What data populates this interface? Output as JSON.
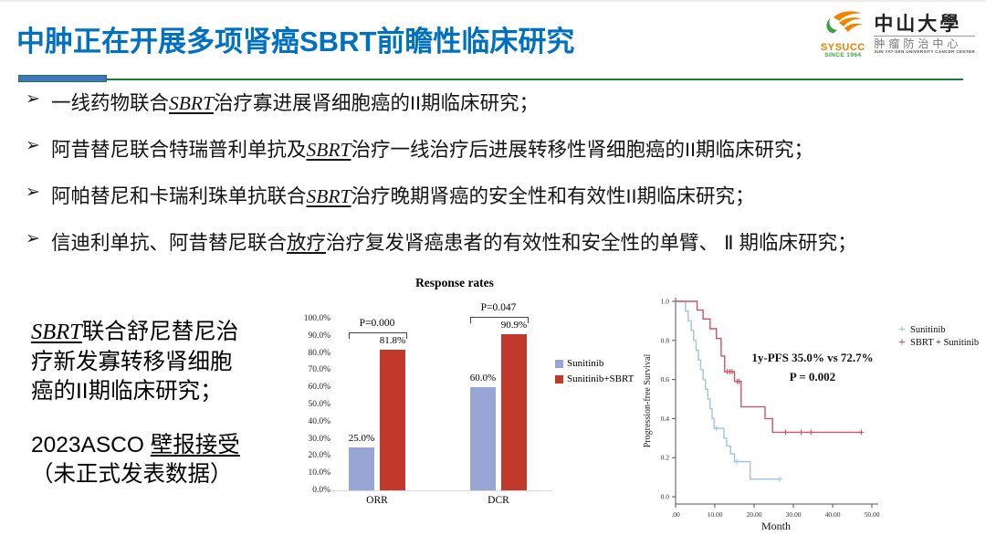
{
  "slide": {
    "title": "中肿正在开展多项肾癌SBRT前瞻性临床研究",
    "logo": {
      "abbr": "SYSUCC",
      "since": "SINCE 1964",
      "org_cn": "中山大學",
      "org_sub_cn": "肿瘤防治中心",
      "org_en": "SUN YAT-SEN UNIVERSITY CANCER CENTER"
    },
    "bullets": [
      {
        "prefix": "一线药物联合",
        "term": "SBRT",
        "suffix": "治疗寡进展肾细胞癌的II期临床研究；"
      },
      {
        "prefix": "阿昔替尼联合特瑞普利单抗及",
        "term": "SBRT",
        "suffix": "治疗一线治疗后进展转移性肾细胞癌的II期临床研究；"
      },
      {
        "prefix": "阿帕替尼和卡瑞利珠单抗联合",
        "term": "SBRT",
        "suffix": "治疗晚期肾癌的安全性和有效性II期临床研究；"
      },
      {
        "prefix": "信迪利单抗、阿昔替尼联合",
        "term": "放疗",
        "suffix": "治疗复发肾癌患者的有效性和安全性的单臂、 Ⅱ 期临床研究；"
      }
    ],
    "note": {
      "study_term": "SBRT",
      "study_rest": "联合舒尼替尼治疗新发寡转移肾细胞癌的II期临床研究；",
      "accept_prefix": "2023ASCO ",
      "accept_underlined": "壁报接受",
      "accept_suffix": "（未正式发表数据）"
    }
  },
  "chart_data": [
    {
      "type": "bar",
      "title": "Response rates",
      "categories": [
        "ORR",
        "DCR"
      ],
      "series": [
        {
          "name": "Sunitinib",
          "values": [
            25.0,
            60.0
          ],
          "labels": [
            "25.0%",
            "60.0%"
          ],
          "color": "#98a6d6"
        },
        {
          "name": "Sunitinib+SBRT",
          "values": [
            81.8,
            90.9
          ],
          "labels": [
            "81.8%",
            "90.9%"
          ],
          "color": "#c0392b"
        }
      ],
      "p_values": [
        {
          "category": "ORR",
          "label": "P=0.000"
        },
        {
          "category": "DCR",
          "label": "P=0.047"
        }
      ],
      "yticks": [
        "0.0%",
        "10.0%",
        "20.0%",
        "30.0%",
        "40.0%",
        "50.0%",
        "60.0%",
        "70.0%",
        "80.0%",
        "90.0%",
        "100.0%"
      ],
      "ylim": [
        0,
        100
      ],
      "grid": false,
      "legend_position": "right"
    },
    {
      "type": "line",
      "subtype": "kaplan-meier",
      "xlabel": "Month",
      "ylabel": "Progression-free Survival",
      "xticks": [
        ".00",
        "10.00",
        "20.00",
        "30.00",
        "40.00",
        "50.00"
      ],
      "yticks": [
        "0.0",
        "0.2",
        "0.4",
        "0.6",
        "0.8",
        "1.0"
      ],
      "xlim": [
        0,
        52
      ],
      "ylim": [
        0,
        1.0
      ],
      "annotation": {
        "line1": "1y-PFS 35.0% vs 72.7%",
        "line2": "P = 0.002"
      },
      "legend_position": "right",
      "series": [
        {
          "name": "Sunitinib",
          "color": "#9dc3e6",
          "steps": [
            [
              0,
              1.0
            ],
            [
              2.5,
              1.0
            ],
            [
              2.5,
              0.95
            ],
            [
              3.2,
              0.95
            ],
            [
              3.2,
              0.9
            ],
            [
              4,
              0.9
            ],
            [
              4,
              0.85
            ],
            [
              4.6,
              0.85
            ],
            [
              4.6,
              0.8
            ],
            [
              5.2,
              0.8
            ],
            [
              5.2,
              0.75
            ],
            [
              5.8,
              0.75
            ],
            [
              5.8,
              0.7
            ],
            [
              6.4,
              0.7
            ],
            [
              6.4,
              0.65
            ],
            [
              7,
              0.65
            ],
            [
              7,
              0.6
            ],
            [
              7.6,
              0.6
            ],
            [
              7.6,
              0.55
            ],
            [
              8.2,
              0.55
            ],
            [
              8.2,
              0.5
            ],
            [
              8.8,
              0.5
            ],
            [
              8.8,
              0.45
            ],
            [
              9.3,
              0.45
            ],
            [
              9.3,
              0.4
            ],
            [
              9.8,
              0.4
            ],
            [
              9.8,
              0.35
            ],
            [
              12.3,
              0.35
            ],
            [
              12.3,
              0.3
            ],
            [
              13,
              0.3
            ],
            [
              13,
              0.26
            ],
            [
              14,
              0.26
            ],
            [
              14,
              0.22
            ],
            [
              15,
              0.22
            ],
            [
              15,
              0.18
            ],
            [
              19,
              0.18
            ],
            [
              19,
              0.09
            ],
            [
              26.5,
              0.09
            ]
          ],
          "censors": [
            [
              10.4,
              0.35
            ],
            [
              15.6,
              0.18
            ],
            [
              26.5,
              0.09
            ]
          ]
        },
        {
          "name": "SBRT + Sunitinib",
          "color": "#cc5468",
          "steps": [
            [
              0,
              1.0
            ],
            [
              5.5,
              1.0
            ],
            [
              5.5,
              0.955
            ],
            [
              7,
              0.955
            ],
            [
              7,
              0.91
            ],
            [
              8.8,
              0.91
            ],
            [
              8.8,
              0.86
            ],
            [
              10.4,
              0.86
            ],
            [
              10.4,
              0.81
            ],
            [
              11.6,
              0.81
            ],
            [
              11.6,
              0.72
            ],
            [
              12.5,
              0.72
            ],
            [
              12.5,
              0.64
            ],
            [
              15,
              0.64
            ],
            [
              15,
              0.59
            ],
            [
              16.7,
              0.59
            ],
            [
              16.7,
              0.46
            ],
            [
              22.8,
              0.46
            ],
            [
              22.8,
              0.4
            ],
            [
              24.7,
              0.4
            ],
            [
              24.7,
              0.33
            ],
            [
              47.5,
              0.33
            ]
          ],
          "censors": [
            [
              13.2,
              0.64
            ],
            [
              13.8,
              0.64
            ],
            [
              14.4,
              0.64
            ],
            [
              15.7,
              0.59
            ],
            [
              16.2,
              0.59
            ],
            [
              28,
              0.33
            ],
            [
              32,
              0.33
            ],
            [
              34.5,
              0.33
            ],
            [
              47.3,
              0.33
            ]
          ]
        }
      ]
    }
  ]
}
